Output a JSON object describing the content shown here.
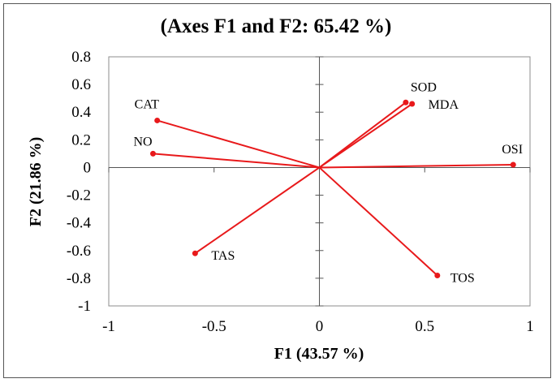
{
  "chart_data": {
    "type": "scatter",
    "subtype": "biplot-vectors",
    "title": "(Axes F1 and F2: 65.42 %)",
    "xlabel": "F1 (43.57 %)",
    "ylabel": "F2 (21.86 %)",
    "xlim": [
      -1,
      1
    ],
    "ylim": [
      -1,
      0.8
    ],
    "xticks": [
      -1,
      -0.5,
      0,
      0.5,
      1
    ],
    "xtick_labels": [
      "-1",
      "-0.5",
      "0",
      "0.5",
      "1"
    ],
    "yticks": [
      -1,
      -0.8,
      -0.6,
      -0.4,
      -0.2,
      0,
      0.2,
      0.4,
      0.6,
      0.8
    ],
    "ytick_labels": [
      "-1",
      "-0.8",
      "-0.6",
      "-0.4",
      "-0.2",
      "0",
      "0.2",
      "0.4",
      "0.6",
      "0.8"
    ],
    "grid": false,
    "color": "#e8191b",
    "points": [
      {
        "label": "CAT",
        "x": -0.77,
        "y": 0.34
      },
      {
        "label": "NO",
        "x": -0.79,
        "y": 0.1
      },
      {
        "label": "SOD",
        "x": 0.41,
        "y": 0.47
      },
      {
        "label": "MDA",
        "x": 0.44,
        "y": 0.46
      },
      {
        "label": "OSI",
        "x": 0.92,
        "y": 0.02
      },
      {
        "label": "TAS",
        "x": -0.59,
        "y": -0.62
      },
      {
        "label": "TOS",
        "x": 0.56,
        "y": -0.78
      }
    ]
  }
}
